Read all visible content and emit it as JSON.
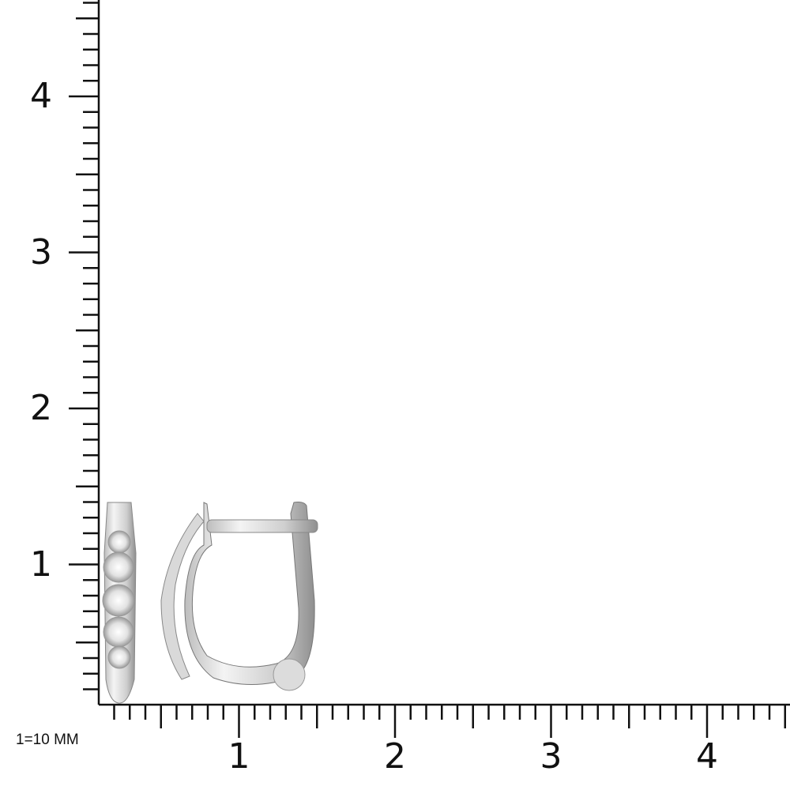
{
  "scale_note": "1=10 MM",
  "y_axis": {
    "labels": [
      "1",
      "2",
      "3",
      "4"
    ],
    "minor_step": 0.1,
    "max": 4.6
  },
  "x_axis": {
    "labels": [
      "1",
      "2",
      "3",
      "4"
    ],
    "minor_step": 0.1,
    "max": 4.5
  },
  "colors": {
    "axis": "#111111",
    "metal_light": "#f2f2f2",
    "metal_dark": "#8a8a8a"
  },
  "product": {
    "subject": "diamond hoop earring, front and side views"
  }
}
